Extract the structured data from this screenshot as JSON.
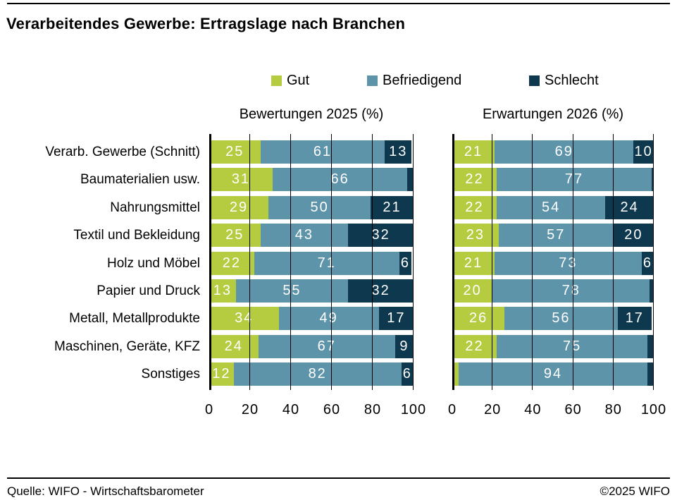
{
  "page": {
    "title": "Verarbeitendes Gewerbe: Ertragslage nach Branchen",
    "footer_left": "Quelle: WIFO - Wirtschaftsbarometer",
    "footer_right": "©2025 WIFO"
  },
  "legend": [
    {
      "label": "Gut",
      "color": "#b5cb40"
    },
    {
      "label": "Befriedigend",
      "color": "#5e94aa"
    },
    {
      "label": "Schlecht",
      "color": "#0e384e"
    }
  ],
  "chart_data": [
    {
      "type": "bar",
      "orientation": "horizontal",
      "stacked": true,
      "title": "Bewertungen 2025 (%)",
      "xlim": [
        0,
        100
      ],
      "xticks": [
        0,
        20,
        40,
        60,
        80,
        100
      ],
      "grid": "vertical-over-bars",
      "categories": [
        "Verarb. Gewerbe (Schnitt)",
        "Baumaterialien usw.",
        "Nahrungsmittel",
        "Textil und Bekleidung",
        "Holz und Möbel",
        "Papier und Druck",
        "Metall, Metallprodukte",
        "Maschinen, Geräte, KFZ",
        "Sonstiges"
      ],
      "series": [
        {
          "name": "Gut",
          "color": "#b5cb40",
          "values": [
            25,
            31,
            29,
            25,
            22,
            13,
            34,
            24,
            12
          ],
          "labels": [
            "25",
            "31",
            "29",
            "25",
            "22",
            "13",
            "34",
            "24",
            "12"
          ]
        },
        {
          "name": "Befriedigend",
          "color": "#5e94aa",
          "values": [
            61,
            66,
            50,
            43,
            71,
            55,
            49,
            67,
            82
          ],
          "labels": [
            "61",
            "66",
            "50",
            "43",
            "71",
            "55",
            "49",
            "67",
            "82"
          ]
        },
        {
          "name": "Schlecht",
          "color": "#0e384e",
          "values": [
            13,
            3,
            21,
            32,
            6,
            32,
            17,
            9,
            6
          ],
          "labels": [
            "13",
            "",
            "21",
            "32",
            "6",
            "32",
            "17",
            "9",
            "6"
          ]
        }
      ]
    },
    {
      "type": "bar",
      "orientation": "horizontal",
      "stacked": true,
      "title": "Erwartungen 2026 (%)",
      "xlim": [
        0,
        100
      ],
      "xticks": [
        0,
        20,
        40,
        60,
        80,
        100
      ],
      "grid": "vertical-over-bars",
      "categories": [
        "Verarb. Gewerbe (Schnitt)",
        "Baumaterialien usw.",
        "Nahrungsmittel",
        "Textil und Bekleidung",
        "Holz und Möbel",
        "Papier und Druck",
        "Metall, Metallprodukte",
        "Maschinen, Geräte, KFZ",
        "Sonstiges"
      ],
      "series": [
        {
          "name": "Gut",
          "color": "#b5cb40",
          "values": [
            21,
            22,
            22,
            23,
            21,
            20,
            26,
            22,
            3
          ],
          "labels": [
            "21",
            "22",
            "22",
            "23",
            "21",
            "20",
            "26",
            "22",
            ""
          ]
        },
        {
          "name": "Befriedigend",
          "color": "#5e94aa",
          "values": [
            69,
            77,
            54,
            57,
            73,
            78,
            56,
            75,
            94
          ],
          "labels": [
            "69",
            "77",
            "54",
            "57",
            "73",
            "78",
            "56",
            "75",
            "94"
          ]
        },
        {
          "name": "Schlecht",
          "color": "#0e384e",
          "values": [
            10,
            1,
            24,
            20,
            6,
            2,
            17,
            3,
            3
          ],
          "labels": [
            "10",
            "",
            "24",
            "20",
            "6",
            "",
            "17",
            "",
            ""
          ]
        }
      ]
    }
  ]
}
